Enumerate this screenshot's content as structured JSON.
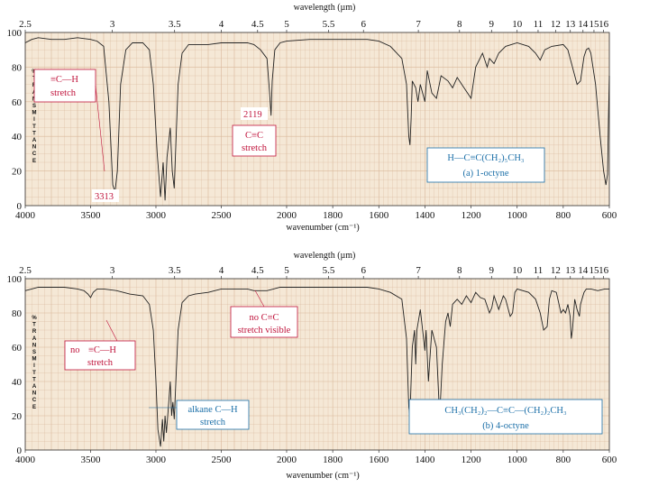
{
  "chart_data": [
    {
      "type": "line",
      "id": "1-octyne",
      "top_axis": {
        "label": "wavelength (µm)",
        "ticks": [
          "2.5",
          "3",
          "3.5",
          "4",
          "4.5",
          "5",
          "5.5",
          "6",
          "7",
          "8",
          "9",
          "10",
          "11",
          "12",
          "13",
          "14",
          "15",
          "16"
        ]
      },
      "bottom_axis": {
        "label": "wavenumber (cm⁻¹)",
        "ticks": [
          "4000",
          "3500",
          "3000",
          "2500",
          "2000",
          "1800",
          "1600",
          "1400",
          "1200",
          "1000",
          "800",
          "600"
        ]
      },
      "y_axis": {
        "ticks": [
          "0",
          "20",
          "40",
          "60",
          "80",
          "100"
        ],
        "ylim": [
          0,
          100
        ],
        "vertical_label": [
          "%",
          "T",
          "R",
          "A",
          "N",
          "S",
          "M",
          "I",
          "T",
          "T",
          "A",
          "N",
          "C",
          "E"
        ]
      },
      "series": [
        {
          "name": "1-octyne",
          "points": [
            [
              4000,
              94
            ],
            [
              3950,
              96
            ],
            [
              3900,
              97
            ],
            [
              3800,
              96
            ],
            [
              3700,
              96
            ],
            [
              3600,
              97
            ],
            [
              3500,
              96
            ],
            [
              3450,
              95
            ],
            [
              3400,
              92
            ],
            [
              3360,
              60
            ],
            [
              3330,
              12
            ],
            [
              3313,
              8
            ],
            [
              3295,
              20
            ],
            [
              3270,
              70
            ],
            [
              3230,
              90
            ],
            [
              3180,
              94
            ],
            [
              3100,
              94
            ],
            [
              3050,
              90
            ],
            [
              3020,
              70
            ],
            [
              2990,
              30
            ],
            [
              2965,
              5
            ],
            [
              2945,
              25
            ],
            [
              2930,
              3
            ],
            [
              2915,
              28
            ],
            [
              2890,
              45
            ],
            [
              2875,
              20
            ],
            [
              2860,
              10
            ],
            [
              2850,
              30
            ],
            [
              2830,
              70
            ],
            [
              2800,
              88
            ],
            [
              2750,
              93
            ],
            [
              2700,
              93
            ],
            [
              2600,
              93
            ],
            [
              2500,
              94
            ],
            [
              2400,
              94
            ],
            [
              2300,
              94
            ],
            [
              2250,
              93
            ],
            [
              2200,
              90
            ],
            [
              2150,
              85
            ],
            [
              2130,
              65
            ],
            [
              2119,
              52
            ],
            [
              2110,
              72
            ],
            [
              2090,
              90
            ],
            [
              2050,
              94
            ],
            [
              2000,
              95
            ],
            [
              1900,
              96
            ],
            [
              1800,
              96
            ],
            [
              1700,
              96
            ],
            [
              1650,
              96
            ],
            [
              1600,
              95
            ],
            [
              1550,
              92
            ],
            [
              1500,
              85
            ],
            [
              1480,
              70
            ],
            [
              1470,
              40
            ],
            [
              1465,
              35
            ],
            [
              1460,
              50
            ],
            [
              1455,
              72
            ],
            [
              1440,
              68
            ],
            [
              1430,
              60
            ],
            [
              1420,
              70
            ],
            [
              1400,
              60
            ],
            [
              1390,
              78
            ],
            [
              1370,
              65
            ],
            [
              1350,
              62
            ],
            [
              1330,
              75
            ],
            [
              1300,
              72
            ],
            [
              1280,
              68
            ],
            [
              1260,
              74
            ],
            [
              1240,
              70
            ],
            [
              1220,
              66
            ],
            [
              1200,
              62
            ],
            [
              1180,
              80
            ],
            [
              1150,
              88
            ],
            [
              1130,
              80
            ],
            [
              1120,
              85
            ],
            [
              1100,
              82
            ],
            [
              1080,
              88
            ],
            [
              1050,
              92
            ],
            [
              1000,
              94
            ],
            [
              950,
              92
            ],
            [
              920,
              88
            ],
            [
              900,
              84
            ],
            [
              880,
              90
            ],
            [
              850,
              92
            ],
            [
              800,
              93
            ],
            [
              780,
              90
            ],
            [
              760,
              80
            ],
            [
              740,
              70
            ],
            [
              725,
              72
            ],
            [
              710,
              86
            ],
            [
              700,
              90
            ],
            [
              690,
              91
            ],
            [
              680,
              88
            ],
            [
              660,
              70
            ],
            [
              640,
              40
            ],
            [
              625,
              20
            ],
            [
              615,
              12
            ],
            [
              608,
              18
            ],
            [
              604,
              50
            ],
            [
              600,
              75
            ]
          ]
        }
      ],
      "annotations": [
        {
          "text_prefix": "≡C—H",
          "text_line2": "stretch",
          "color": "#c0143c"
        },
        {
          "text": "3313",
          "color": "#c0143c"
        },
        {
          "text": "2119",
          "color": "#c0143c"
        },
        {
          "text": "C≡C",
          "text_line2": "stretch",
          "color": "#c0143c"
        }
      ],
      "compound_box": {
        "formula": "H—C≡C(CH₂)₅CH₃",
        "name": "(a) 1-octyne",
        "color": "#1b6fa8"
      }
    },
    {
      "type": "line",
      "id": "4-octyne",
      "top_axis": {
        "label": "wavelength (µm)",
        "ticks": [
          "2.5",
          "3",
          "3.5",
          "4",
          "4.5",
          "5",
          "5.5",
          "6",
          "7",
          "8",
          "9",
          "10",
          "11",
          "12",
          "13",
          "14",
          "15",
          "16"
        ]
      },
      "bottom_axis": {
        "label": "wavenumber (cm⁻¹)",
        "ticks": [
          "4000",
          "3500",
          "3000",
          "2500",
          "2000",
          "1800",
          "1600",
          "1400",
          "1200",
          "1000",
          "800",
          "600"
        ]
      },
      "y_axis": {
        "ticks": [
          "0",
          "20",
          "40",
          "60",
          "80",
          "100"
        ],
        "ylim": [
          0,
          100
        ],
        "vertical_label": [
          "%",
          "T",
          "R",
          "A",
          "N",
          "S",
          "M",
          "I",
          "T",
          "T",
          "A",
          "N",
          "C",
          "E"
        ]
      },
      "series": [
        {
          "name": "4-octyne",
          "points": [
            [
              4000,
              93
            ],
            [
              3950,
              94
            ],
            [
              3900,
              95
            ],
            [
              3800,
              95
            ],
            [
              3700,
              95
            ],
            [
              3600,
              94
            ],
            [
              3550,
              93
            ],
            [
              3520,
              91
            ],
            [
              3500,
              89
            ],
            [
              3480,
              92
            ],
            [
              3450,
              94
            ],
            [
              3400,
              94
            ],
            [
              3300,
              93
            ],
            [
              3200,
              91
            ],
            [
              3100,
              90
            ],
            [
              3050,
              85
            ],
            [
              3020,
              70
            ],
            [
              3000,
              40
            ],
            [
              2985,
              12
            ],
            [
              2965,
              2
            ],
            [
              2950,
              18
            ],
            [
              2940,
              5
            ],
            [
              2930,
              20
            ],
            [
              2920,
              10
            ],
            [
              2905,
              25
            ],
            [
              2890,
              40
            ],
            [
              2880,
              20
            ],
            [
              2870,
              28
            ],
            [
              2860,
              18
            ],
            [
              2850,
              35
            ],
            [
              2830,
              70
            ],
            [
              2800,
              86
            ],
            [
              2750,
              90
            ],
            [
              2700,
              91
            ],
            [
              2600,
              92
            ],
            [
              2500,
              94
            ],
            [
              2400,
              94
            ],
            [
              2300,
              94
            ],
            [
              2250,
              93
            ],
            [
              2200,
              93
            ],
            [
              2150,
              93
            ],
            [
              2100,
              94
            ],
            [
              2050,
              95
            ],
            [
              2000,
              95
            ],
            [
              1900,
              95
            ],
            [
              1800,
              95
            ],
            [
              1700,
              95
            ],
            [
              1650,
              95
            ],
            [
              1600,
              94
            ],
            [
              1550,
              92
            ],
            [
              1500,
              88
            ],
            [
              1480,
              65
            ],
            [
              1470,
              25
            ],
            [
              1465,
              20
            ],
            [
              1460,
              40
            ],
            [
              1455,
              60
            ],
            [
              1445,
              70
            ],
            [
              1440,
              50
            ],
            [
              1435,
              70
            ],
            [
              1420,
              82
            ],
            [
              1400,
              58
            ],
            [
              1395,
              70
            ],
            [
              1385,
              40
            ],
            [
              1380,
              50
            ],
            [
              1370,
              70
            ],
            [
              1350,
              60
            ],
            [
              1340,
              30
            ],
            [
              1335,
              22
            ],
            [
              1325,
              50
            ],
            [
              1310,
              75
            ],
            [
              1300,
              80
            ],
            [
              1290,
              72
            ],
            [
              1280,
              85
            ],
            [
              1260,
              88
            ],
            [
              1240,
              85
            ],
            [
              1220,
              90
            ],
            [
              1200,
              86
            ],
            [
              1180,
              92
            ],
            [
              1160,
              89
            ],
            [
              1140,
              88
            ],
            [
              1120,
              80
            ],
            [
              1110,
              83
            ],
            [
              1100,
              90
            ],
            [
              1080,
              82
            ],
            [
              1070,
              86
            ],
            [
              1060,
              90
            ],
            [
              1050,
              88
            ],
            [
              1030,
              78
            ],
            [
              1020,
              80
            ],
            [
              1010,
              92
            ],
            [
              1000,
              94
            ],
            [
              950,
              92
            ],
            [
              920,
              88
            ],
            [
              900,
              80
            ],
            [
              885,
              70
            ],
            [
              870,
              72
            ],
            [
              860,
              88
            ],
            [
              850,
              93
            ],
            [
              830,
              92
            ],
            [
              810,
              80
            ],
            [
              800,
              82
            ],
            [
              790,
              80
            ],
            [
              780,
              85
            ],
            [
              770,
              78
            ],
            [
              765,
              65
            ],
            [
              760,
              70
            ],
            [
              750,
              88
            ],
            [
              740,
              82
            ],
            [
              730,
              78
            ],
            [
              725,
              85
            ],
            [
              710,
              92
            ],
            [
              700,
              94
            ],
            [
              680,
              94
            ],
            [
              650,
              93
            ],
            [
              620,
              94
            ],
            [
              600,
              94
            ]
          ]
        }
      ],
      "annotations": [
        {
          "text": "no C≡C",
          "text_line2": "stretch visible",
          "color": "#c0143c"
        },
        {
          "text_prefix": "no",
          "text_mid": "≡C—H",
          "text_line2": "stretch",
          "color": "#c0143c"
        },
        {
          "text": "alkane C—H",
          "text_line2": "stretch",
          "color": "#1b6fa8"
        }
      ],
      "compound_box": {
        "formula": "CH₃(CH₂)₂—C≡C—(CH₂)₂CH₃",
        "name": "(b) 4-octyne",
        "color": "#1b6fa8"
      }
    }
  ]
}
